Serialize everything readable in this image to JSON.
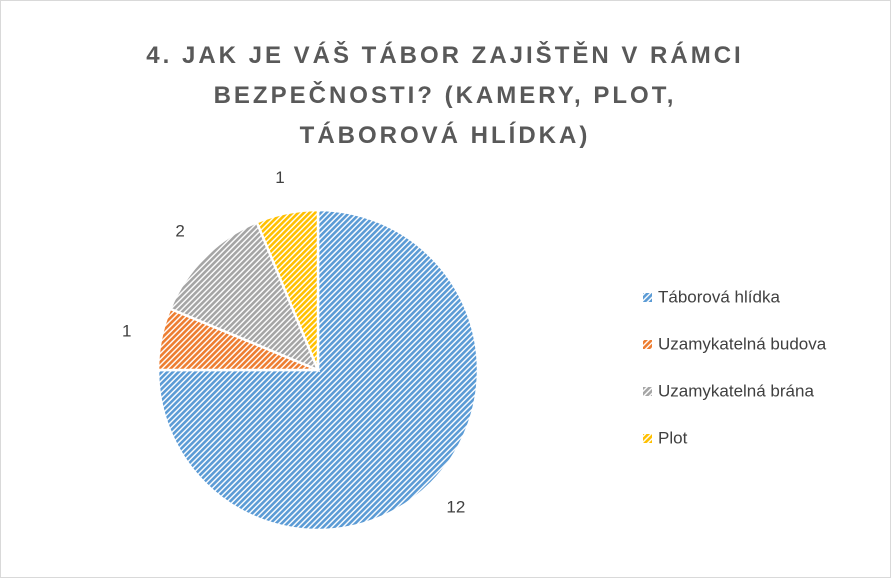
{
  "chart_data": {
    "type": "pie",
    "title": "4. JAK JE VÁŠ TÁBOR ZAJIŠTĚN V RÁMCI BEZPEČNOSTI? (KAMERY, PLOT, TÁBOROVÁ HLÍDKA)",
    "categories": [
      "Táborová hlídka",
      "Uzamykatelná budova",
      "Uzamykatelná brána",
      "Plot"
    ],
    "values": [
      12,
      1,
      2,
      1
    ],
    "colors": [
      "#5b9bd5",
      "#ed7d31",
      "#a5a5a5",
      "#ffc000"
    ],
    "legend": "right"
  }
}
